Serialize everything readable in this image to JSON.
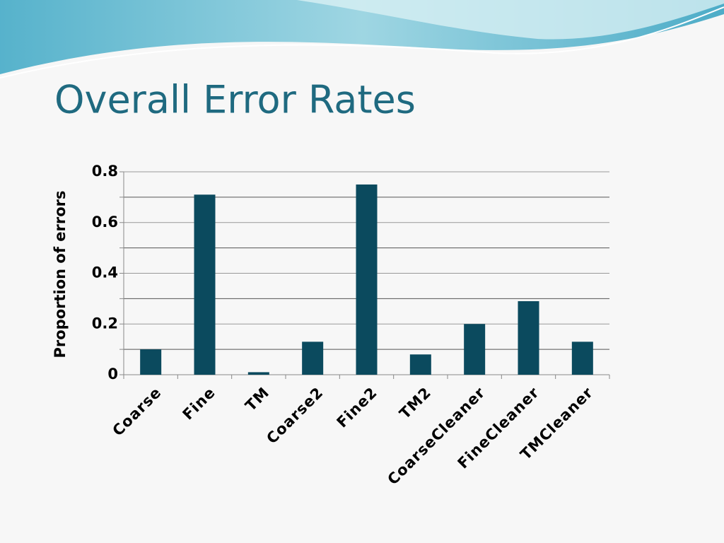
{
  "chart_data": {
    "type": "bar",
    "title": "Overall Error Rates",
    "y_label": "Proportion of errors",
    "categories": [
      "Coarse",
      "Fine",
      "TM",
      "Coarse2",
      "Fine2",
      "TM2",
      "CoarseCleaner",
      "FineCleaner",
      "TMCleaner"
    ],
    "values": [
      0.1,
      0.71,
      0.01,
      0.13,
      0.75,
      0.08,
      0.2,
      0.29,
      0.13
    ],
    "color": "#0b4a5e",
    "ylim": [
      0,
      0.8
    ],
    "yticks": [
      0,
      0.2,
      0.4,
      0.6,
      0.8
    ],
    "minor_yticks": [
      0.1,
      0.3,
      0.5,
      0.7
    ],
    "grid": true
  }
}
